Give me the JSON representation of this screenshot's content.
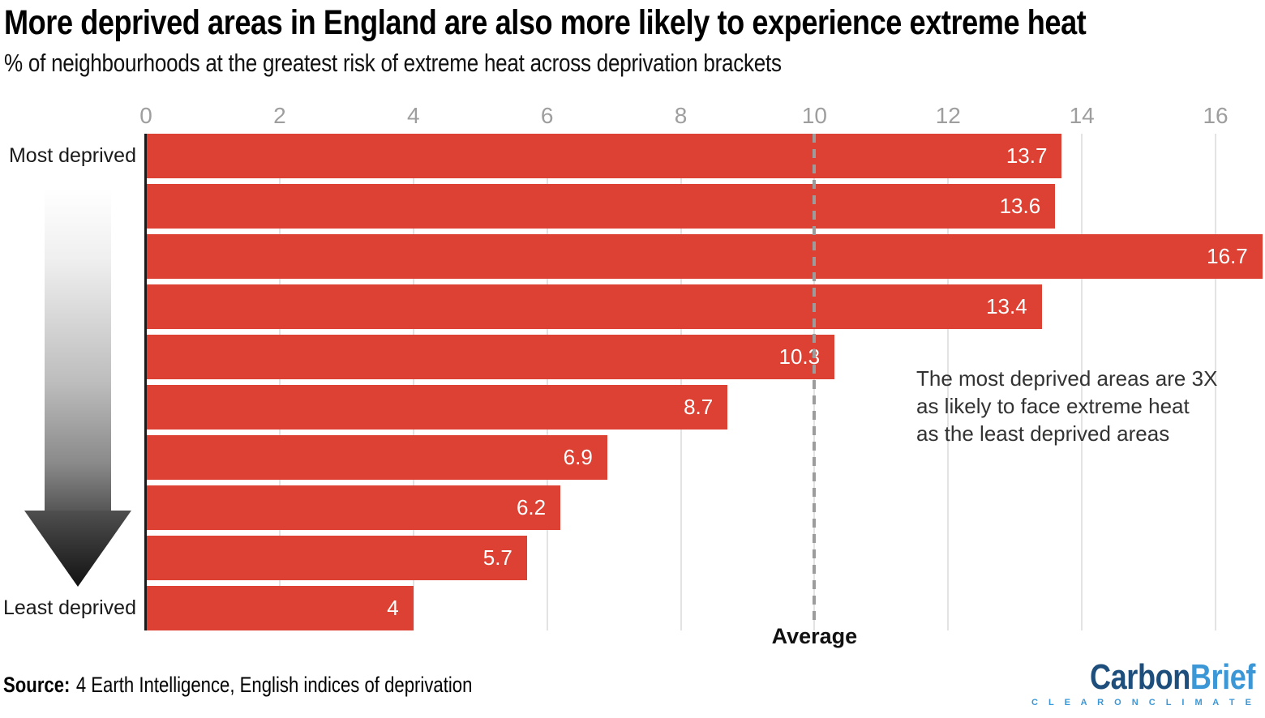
{
  "header": {
    "title": "More deprived areas in England are also more likely to experience extreme heat",
    "subtitle": "% of neighbourhoods at the greatest risk of extreme heat across deprivation brackets"
  },
  "chart_data": {
    "type": "bar",
    "orientation": "horizontal",
    "title": "More deprived areas in England are also more likely to experience extreme heat",
    "subtitle": "% of neighbourhoods at the greatest risk of extreme heat across deprivation brackets",
    "categories": [
      "Most deprived",
      "",
      "",
      "",
      "",
      "",
      "",
      "",
      "",
      "Least deprived"
    ],
    "values": [
      13.7,
      13.6,
      16.7,
      13.4,
      10.3,
      8.7,
      6.9,
      6.2,
      5.7,
      4
    ],
    "value_labels": [
      "13.7",
      "13.6",
      "16.7",
      "13.4",
      "10.3",
      "8.7",
      "6.9",
      "6.2",
      "5.7",
      "4"
    ],
    "x_ticks": [
      0,
      2,
      4,
      6,
      8,
      10,
      12,
      14,
      16
    ],
    "xlim": [
      0,
      16.74
    ],
    "grid": true,
    "legend": "none",
    "average_line": {
      "value": 10,
      "label": "Average"
    },
    "annotation_lines": [
      "The most deprived areas are 3X",
      "as likely to face extreme heat",
      "as the least deprived areas"
    ]
  },
  "colors": {
    "bar": "#DC4133",
    "grid": "#E3E3E3",
    "axis": "#1A1A1A",
    "tick_label": "#9E9E9E",
    "average_line": "#9C9C9C",
    "annotation": "#333333"
  },
  "footer": {
    "source_prefix": "Source:",
    "source_text": "4 Earth Intelligence, English indices of deprivation",
    "logo": {
      "word_part1": "Carbon",
      "word_part2": "Brief",
      "tagline": "C L E A R   O N   C L I M A T E",
      "color_dark": "#1E4F7C",
      "color_light": "#3B97D6"
    }
  }
}
